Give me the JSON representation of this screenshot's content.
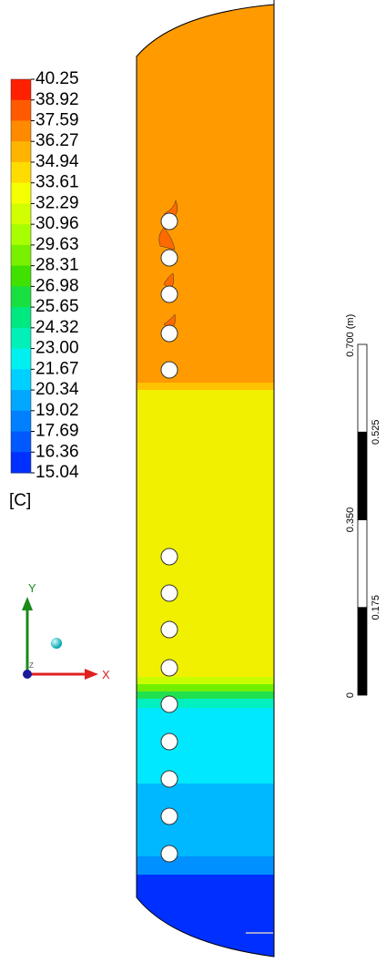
{
  "legend": {
    "labels": [
      "40.25",
      "38.92",
      "37.59",
      "36.27",
      "34.94",
      "33.61",
      "32.29",
      "30.96",
      "29.63",
      "28.31",
      "26.98",
      "25.65",
      "24.32",
      "23.00",
      "21.67",
      "20.34",
      "19.02",
      "17.69",
      "16.36",
      "15.04"
    ],
    "unit": "[C]"
  },
  "triad": {
    "x": "X",
    "y": "Y",
    "z": "Z"
  },
  "scale": {
    "unit": "(m)",
    "ticks": [
      0,
      {
        "value": 0.175,
        "label": "0.175"
      },
      {
        "value": 0.35,
        "label": "0.350"
      },
      {
        "value": 0.525,
        "label": "0.525"
      },
      {
        "value": 0.7,
        "label": "0.700"
      }
    ]
  }
}
